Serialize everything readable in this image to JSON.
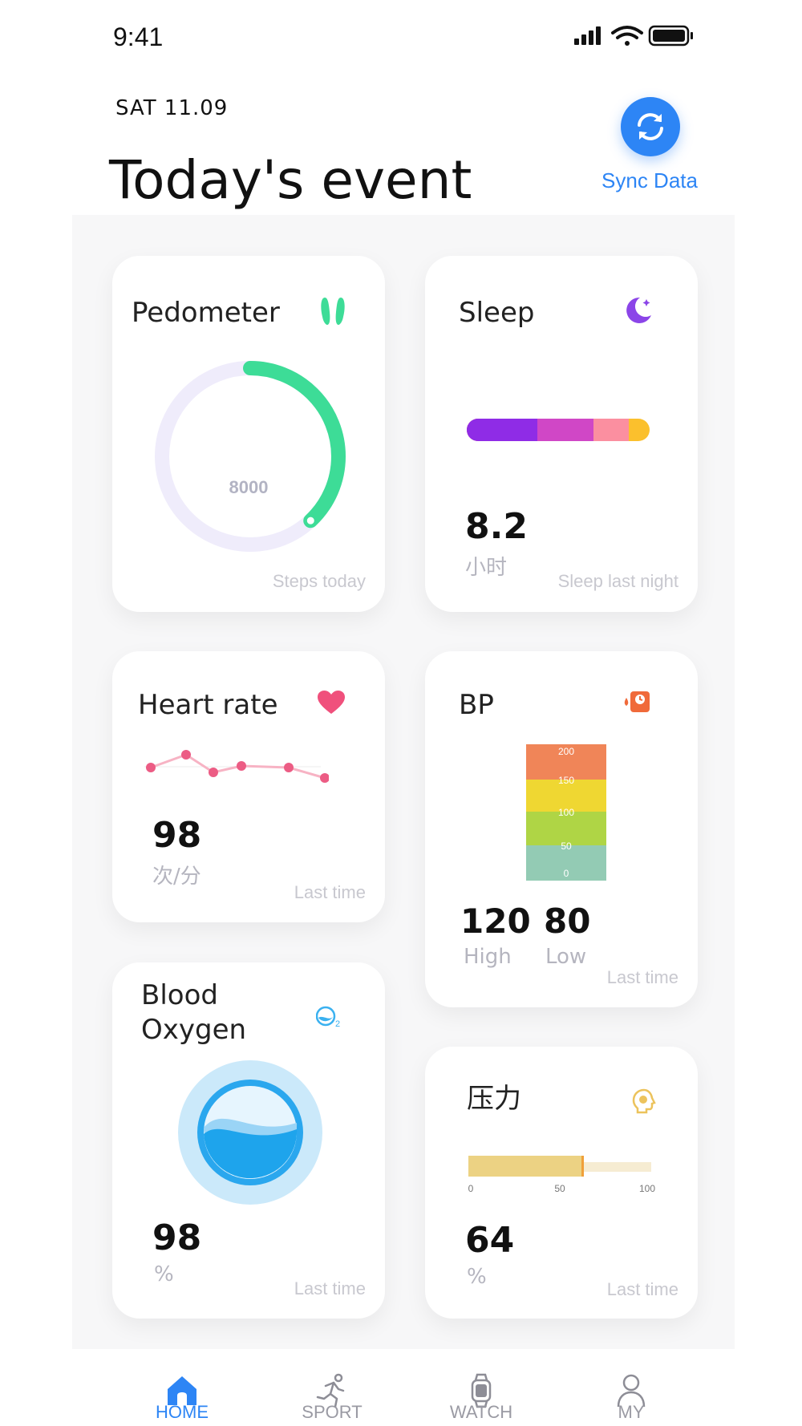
{
  "status_bar": {
    "time": "9:41"
  },
  "header": {
    "date": "SAT  11.09",
    "title": "Today's event",
    "sync_label": "Sync Data"
  },
  "cards": {
    "pedometer": {
      "title": "Pedometer",
      "steps": "8000",
      "footer": "Steps today",
      "progress_fraction": 0.38
    },
    "sleep": {
      "title": "Sleep",
      "value": "8.2",
      "unit": "小时",
      "footer": "Sleep last night"
    },
    "heart_rate": {
      "title": "Heart rate",
      "value": "98",
      "unit": "次/分",
      "footer": "Last time"
    },
    "bp": {
      "title": "BP",
      "scale_labels": [
        "200",
        "150",
        "100",
        "50",
        "0"
      ],
      "high_value": "120",
      "high_label": "High",
      "low_value": "80",
      "low_label": "Low",
      "footer": "Last time"
    },
    "blood_oxygen": {
      "title_line1": "Blood",
      "title_line2": "Oxygen",
      "value": "98",
      "unit": "%",
      "footer": "Last time"
    },
    "stress": {
      "title": "压力",
      "scale_labels": [
        "0",
        "50",
        "100"
      ],
      "value": "64",
      "unit": "%",
      "footer": "Last time",
      "level_fraction": 0.62
    }
  },
  "tab_bar": {
    "items": [
      {
        "label": "HOME",
        "active": true
      },
      {
        "label": "SPORT",
        "active": false
      },
      {
        "label": "WATCH",
        "active": false
      },
      {
        "label": "MY",
        "active": false
      }
    ]
  },
  "colors": {
    "accent": "#2d85f5",
    "pedometer_ring": "#3ddc97",
    "heart": "#f0507c",
    "stress_bar": "#ecd283"
  }
}
